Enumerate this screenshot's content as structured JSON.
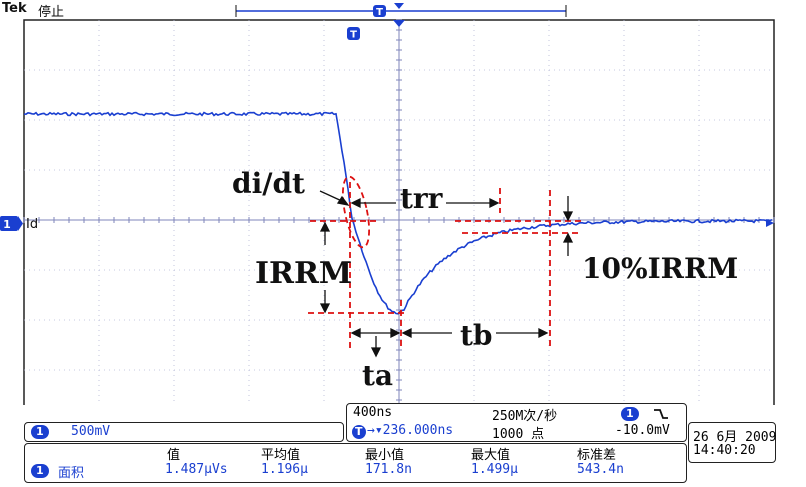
{
  "header": {
    "brand": "Tek",
    "run_state": "停止"
  },
  "trigger_marker": "T",
  "channel": {
    "number": "1",
    "label": "Id",
    "scale": "500mV",
    "color": "#1a3fd0"
  },
  "annotations": {
    "didt": "di/dt",
    "trr": "trr",
    "irrm": "IRRM",
    "pct_irrm": "10%IRRM",
    "tb": "tb",
    "ta": "ta"
  },
  "timebase": {
    "time_div": "400ns",
    "sample_rate": "250M次/秒",
    "trigger_pos": "236.000ns",
    "record_length": "1000 点",
    "trigger_channel": "1",
    "trigger_slope_icon": "falling-edge-icon",
    "trigger_level": "-10.0mV"
  },
  "datetime": {
    "date": "26 6月  2009",
    "time": "14:40:20"
  },
  "measurements": {
    "headers": [
      "值",
      "平均值",
      "最小值",
      "最大值",
      "标准差"
    ],
    "row": {
      "channel": "1",
      "name": "面积",
      "values": [
        "1.487μVs",
        "1.196μ",
        "171.8n",
        "1.499μ",
        "543.4n"
      ]
    }
  },
  "colors": {
    "trace": "#1a3fd0",
    "annotation": "#dd1111",
    "grid": "#9aa0c8",
    "frame": "#222222"
  }
}
